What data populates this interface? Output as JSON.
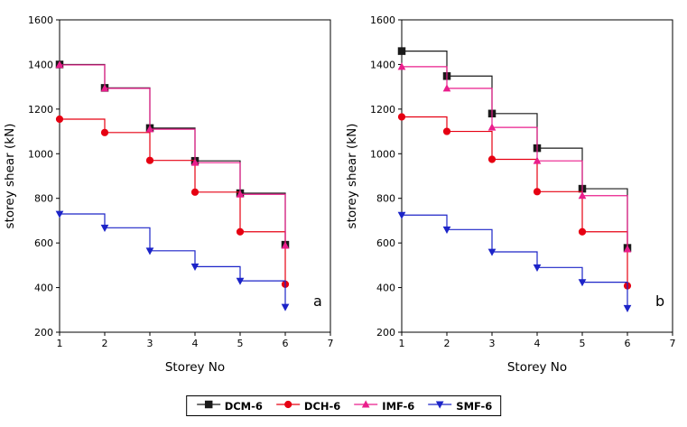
{
  "figure": {
    "xlabel": "Storey No",
    "ylabel": "storey shear (kN)"
  },
  "chart_data": [
    {
      "type": "line",
      "subtype": "step-post",
      "panel_label": "a",
      "xlabel": "Storey No",
      "ylabel": "storey shear (kN)",
      "x": [
        1,
        2,
        3,
        4,
        5,
        6
      ],
      "xlim": [
        1,
        7
      ],
      "ylim": [
        200,
        1600
      ],
      "xticks": [
        1,
        2,
        3,
        4,
        5,
        6,
        7
      ],
      "yticks": [
        200,
        400,
        600,
        800,
        1000,
        1200,
        1400,
        1600
      ],
      "grid": false,
      "legend_position": "bottom-outside",
      "series": [
        {
          "name": "DCM-6",
          "marker": "square",
          "color": "#1a1a1a",
          "values": [
            1400,
            1295,
            1115,
            968,
            823,
            592
          ]
        },
        {
          "name": "DCH-6",
          "marker": "circle",
          "color": "#e60012",
          "values": [
            1155,
            1095,
            970,
            828,
            650,
            415
          ]
        },
        {
          "name": "IMF-6",
          "marker": "triangle-up",
          "color": "#ea1e8c",
          "values": [
            1398,
            1293,
            1110,
            960,
            818,
            588
          ]
        },
        {
          "name": "SMF-6",
          "marker": "triangle-down",
          "color": "#1c24c8",
          "values": [
            730,
            668,
            565,
            494,
            430,
            313
          ]
        }
      ]
    },
    {
      "type": "line",
      "subtype": "step-post",
      "panel_label": "b",
      "xlabel": "Storey No",
      "ylabel": "storey shear (kN)",
      "x": [
        1,
        2,
        3,
        4,
        5,
        6
      ],
      "xlim": [
        1,
        7
      ],
      "ylim": [
        200,
        1600
      ],
      "xticks": [
        1,
        2,
        3,
        4,
        5,
        6,
        7
      ],
      "yticks": [
        200,
        400,
        600,
        800,
        1000,
        1200,
        1400,
        1600
      ],
      "grid": false,
      "legend_position": "bottom-outside",
      "series": [
        {
          "name": "DCM-6",
          "marker": "square",
          "color": "#1a1a1a",
          "values": [
            1460,
            1348,
            1180,
            1025,
            843,
            578
          ]
        },
        {
          "name": "DCH-6",
          "marker": "circle",
          "color": "#e60012",
          "values": [
            1165,
            1100,
            975,
            830,
            650,
            408
          ]
        },
        {
          "name": "IMF-6",
          "marker": "triangle-up",
          "color": "#ea1e8c",
          "values": [
            1390,
            1293,
            1118,
            968,
            812,
            572
          ]
        },
        {
          "name": "SMF-6",
          "marker": "triangle-down",
          "color": "#1c24c8",
          "values": [
            725,
            660,
            560,
            490,
            424,
            308
          ]
        }
      ]
    }
  ]
}
